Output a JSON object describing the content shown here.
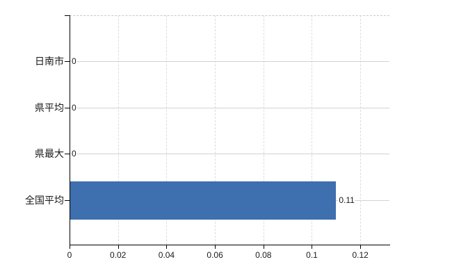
{
  "chart_data": {
    "type": "bar",
    "orientation": "horizontal",
    "title": "",
    "xlabel": "",
    "ylabel": "",
    "categories": [
      "日南市",
      "県平均",
      "県最大",
      "全国平均"
    ],
    "values": [
      0,
      0,
      0,
      0.11
    ],
    "value_labels": [
      "0",
      "0",
      "0",
      "0.11"
    ],
    "x_ticks": [
      0,
      0.02,
      0.04,
      0.06,
      0.08,
      0.1,
      0.12
    ],
    "x_tick_labels": [
      "0",
      "0.02",
      "0.04",
      "0.06",
      "0.08",
      "0.1",
      "0.12"
    ],
    "xlim": [
      0,
      0.132
    ],
    "grid": true,
    "legend": false,
    "colors": {
      "bar": "#3e6fae",
      "axis": "#000000",
      "text": "#1a1a1a",
      "h_gridline": "#ccd5cc",
      "v_gridline": "#dcdcdc",
      "top_border": "#c9c9c9"
    }
  }
}
